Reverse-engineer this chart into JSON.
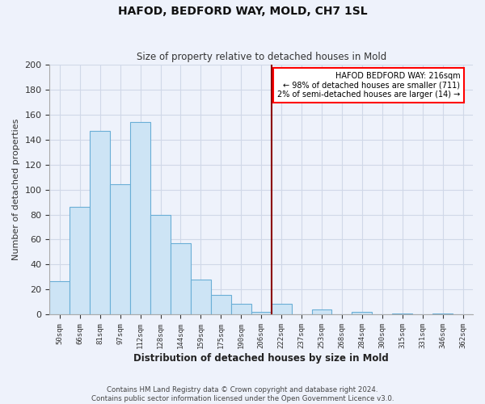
{
  "title": "HAFOD, BEDFORD WAY, MOLD, CH7 1SL",
  "subtitle": "Size of property relative to detached houses in Mold",
  "xlabel": "Distribution of detached houses by size in Mold",
  "ylabel": "Number of detached properties",
  "bar_labels": [
    "50sqm",
    "66sqm",
    "81sqm",
    "97sqm",
    "112sqm",
    "128sqm",
    "144sqm",
    "159sqm",
    "175sqm",
    "190sqm",
    "206sqm",
    "222sqm",
    "237sqm",
    "253sqm",
    "268sqm",
    "284sqm",
    "300sqm",
    "315sqm",
    "331sqm",
    "346sqm",
    "362sqm"
  ],
  "bar_values": [
    27,
    86,
    147,
    104,
    154,
    80,
    57,
    28,
    16,
    9,
    2,
    9,
    0,
    4,
    0,
    2,
    0,
    1,
    0,
    1,
    0
  ],
  "bar_color": "#cde4f5",
  "bar_edge_color": "#6aaed6",
  "property_line_x": 10,
  "bin_edges": [
    50,
    66,
    81,
    97,
    112,
    128,
    144,
    159,
    175,
    190,
    206,
    222,
    237,
    253,
    268,
    284,
    300,
    315,
    331,
    346,
    362,
    378
  ],
  "ylim": [
    0,
    200
  ],
  "yticks": [
    0,
    20,
    40,
    60,
    80,
    100,
    120,
    140,
    160,
    180,
    200
  ],
  "annotation_title": "HAFOD BEDFORD WAY: 216sqm",
  "annotation_line1": "← 98% of detached houses are smaller (711)",
  "annotation_line2": "2% of semi-detached houses are larger (14) →",
  "footer_line1": "Contains HM Land Registry data © Crown copyright and database right 2024.",
  "footer_line2": "Contains public sector information licensed under the Open Government Licence v3.0.",
  "background_color": "#eef2fb",
  "grid_color": "#d0d8e8",
  "red_line_bin": 10
}
